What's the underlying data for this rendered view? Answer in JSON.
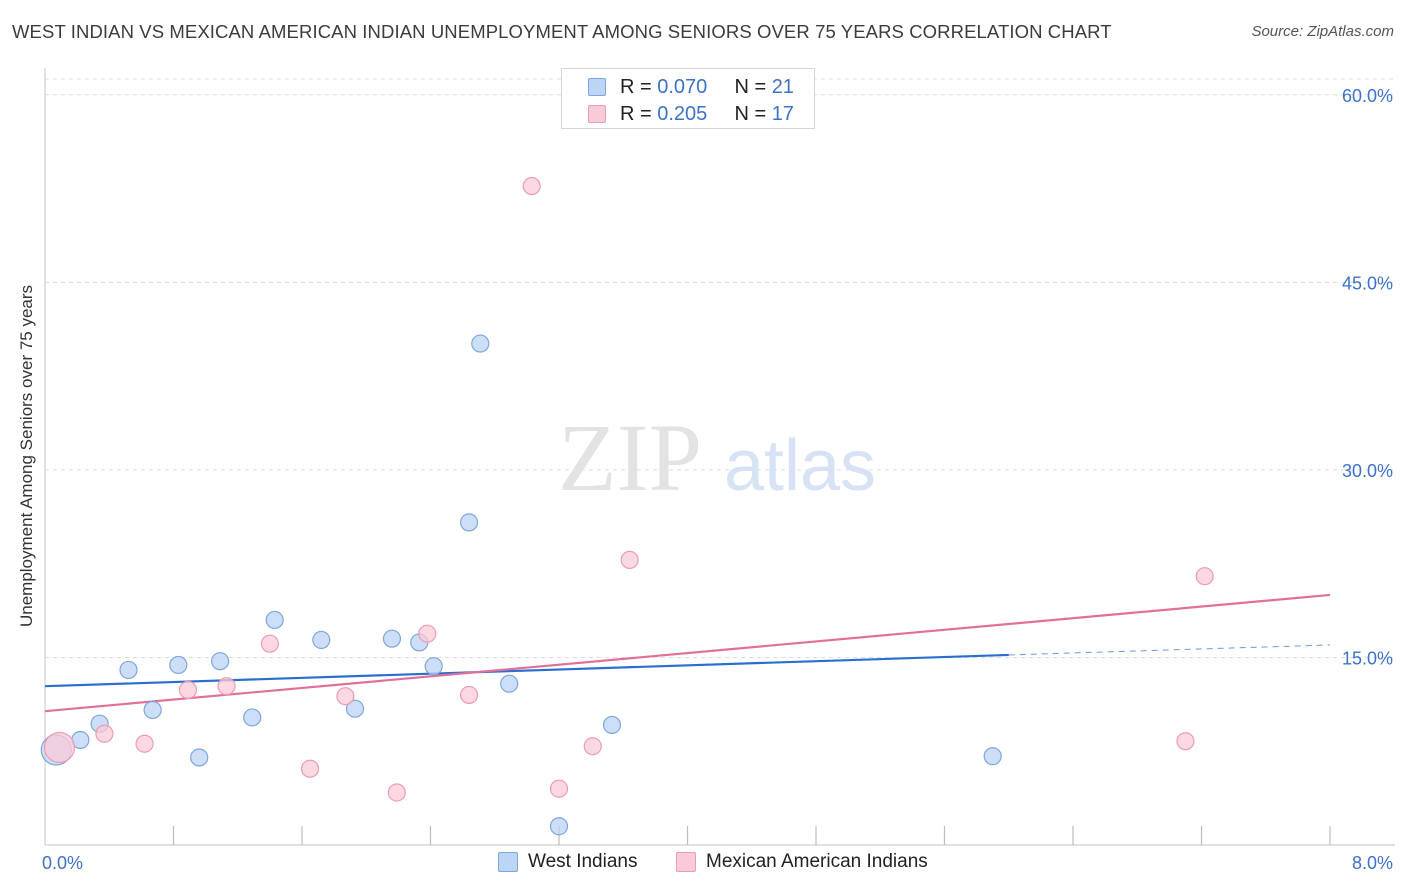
{
  "title": "WEST INDIAN VS MEXICAN AMERICAN INDIAN UNEMPLOYMENT AMONG SENIORS OVER 75 YEARS CORRELATION CHART",
  "source": "Source: ZipAtlas.com",
  "watermark": {
    "zip": "ZIP",
    "atlas": "atlas"
  },
  "legend_top": {
    "rows": [
      {
        "r_label": "R = ",
        "r_value": "0.070",
        "n_label": "N = ",
        "n_value": "21"
      },
      {
        "r_label": "R = ",
        "r_value": "0.205",
        "n_label": "N = ",
        "n_value": "17"
      }
    ]
  },
  "legend_bottom": [
    "West Indians",
    "Mexican American Indians"
  ],
  "colors": {
    "blue_fill": "#bcd4f5",
    "blue_stroke": "#7fa6dc",
    "blue_line": "#2a6fd0",
    "pink_fill": "#f9cbd8",
    "pink_stroke": "#ec9cb3",
    "pink_line": "#e0709a",
    "grid": "#dcdcdc",
    "axis_text": "#3d72c9"
  },
  "chart_data": {
    "type": "scatter",
    "title": "WEST INDIAN VS MEXICAN AMERICAN INDIAN UNEMPLOYMENT AMONG SENIORS OVER 75 YEARS CORRELATION CHART",
    "xlabel": "",
    "ylabel": "Unemployment Among Seniors over 75 years",
    "xlim": [
      0,
      8
    ],
    "ylim": [
      0,
      61.5
    ],
    "x_tick_labels": [
      {
        "value": 0,
        "label": "0.0%"
      },
      {
        "value": 8,
        "label": "8.0%"
      }
    ],
    "x_minor_ticks": [
      0.8,
      1.6,
      2.4,
      3.2,
      4.0,
      4.8,
      5.6,
      6.4,
      7.2,
      8.0
    ],
    "y_ticks": [
      {
        "value": 15,
        "label": "15.0%"
      },
      {
        "value": 30,
        "label": "30.0%"
      },
      {
        "value": 45,
        "label": "45.0%"
      },
      {
        "value": 60,
        "label": "60.0%"
      }
    ],
    "grid": true,
    "legend": "top-center",
    "series": [
      {
        "name": "West Indians",
        "color": "blue",
        "r": 0.07,
        "n": 21,
        "points": [
          {
            "x": 0.07,
            "y": 7.6,
            "s": 2
          },
          {
            "x": 0.22,
            "y": 8.4,
            "s": 1
          },
          {
            "x": 0.34,
            "y": 9.7,
            "s": 1
          },
          {
            "x": 0.52,
            "y": 14.0,
            "s": 1
          },
          {
            "x": 0.67,
            "y": 10.8,
            "s": 1
          },
          {
            "x": 0.83,
            "y": 14.4,
            "s": 1
          },
          {
            "x": 0.96,
            "y": 7.0,
            "s": 1
          },
          {
            "x": 1.09,
            "y": 14.7,
            "s": 1
          },
          {
            "x": 1.29,
            "y": 10.2,
            "s": 1
          },
          {
            "x": 1.43,
            "y": 18.0,
            "s": 1
          },
          {
            "x": 1.72,
            "y": 16.4,
            "s": 1
          },
          {
            "x": 1.93,
            "y": 10.9,
            "s": 1
          },
          {
            "x": 2.16,
            "y": 16.5,
            "s": 1
          },
          {
            "x": 2.33,
            "y": 16.2,
            "s": 1
          },
          {
            "x": 2.42,
            "y": 14.3,
            "s": 1
          },
          {
            "x": 2.64,
            "y": 25.8,
            "s": 1
          },
          {
            "x": 2.71,
            "y": 40.1,
            "s": 1
          },
          {
            "x": 2.89,
            "y": 12.9,
            "s": 1
          },
          {
            "x": 3.2,
            "y": 1.5,
            "s": 1
          },
          {
            "x": 3.53,
            "y": 9.6,
            "s": 1
          },
          {
            "x": 5.9,
            "y": 7.1,
            "s": 1
          }
        ],
        "trend": {
          "x0": 0,
          "y0": 12.7,
          "x1": 6.0,
          "y1": 15.2,
          "dash_to_x": 8.0,
          "dash_to_y": 16.0
        }
      },
      {
        "name": "Mexican American Indians",
        "color": "pink",
        "r": 0.205,
        "n": 17,
        "points": [
          {
            "x": 0.09,
            "y": 7.8,
            "s": 2
          },
          {
            "x": 0.37,
            "y": 8.9,
            "s": 1
          },
          {
            "x": 0.62,
            "y": 8.1,
            "s": 1
          },
          {
            "x": 0.89,
            "y": 12.4,
            "s": 1
          },
          {
            "x": 1.13,
            "y": 12.7,
            "s": 1
          },
          {
            "x": 1.4,
            "y": 16.1,
            "s": 1
          },
          {
            "x": 1.65,
            "y": 6.1,
            "s": 1
          },
          {
            "x": 1.87,
            "y": 11.9,
            "s": 1
          },
          {
            "x": 2.19,
            "y": 4.2,
            "s": 1
          },
          {
            "x": 2.38,
            "y": 16.9,
            "s": 1
          },
          {
            "x": 2.64,
            "y": 12.0,
            "s": 1
          },
          {
            "x": 3.03,
            "y": 52.7,
            "s": 1
          },
          {
            "x": 3.2,
            "y": 4.5,
            "s": 1
          },
          {
            "x": 3.41,
            "y": 7.9,
            "s": 1
          },
          {
            "x": 3.64,
            "y": 22.8,
            "s": 1
          },
          {
            "x": 7.1,
            "y": 8.3,
            "s": 1
          },
          {
            "x": 7.22,
            "y": 21.5,
            "s": 1
          }
        ],
        "trend": {
          "x0": 0,
          "y0": 10.7,
          "x1": 8.0,
          "y1": 20.0
        }
      }
    ]
  }
}
